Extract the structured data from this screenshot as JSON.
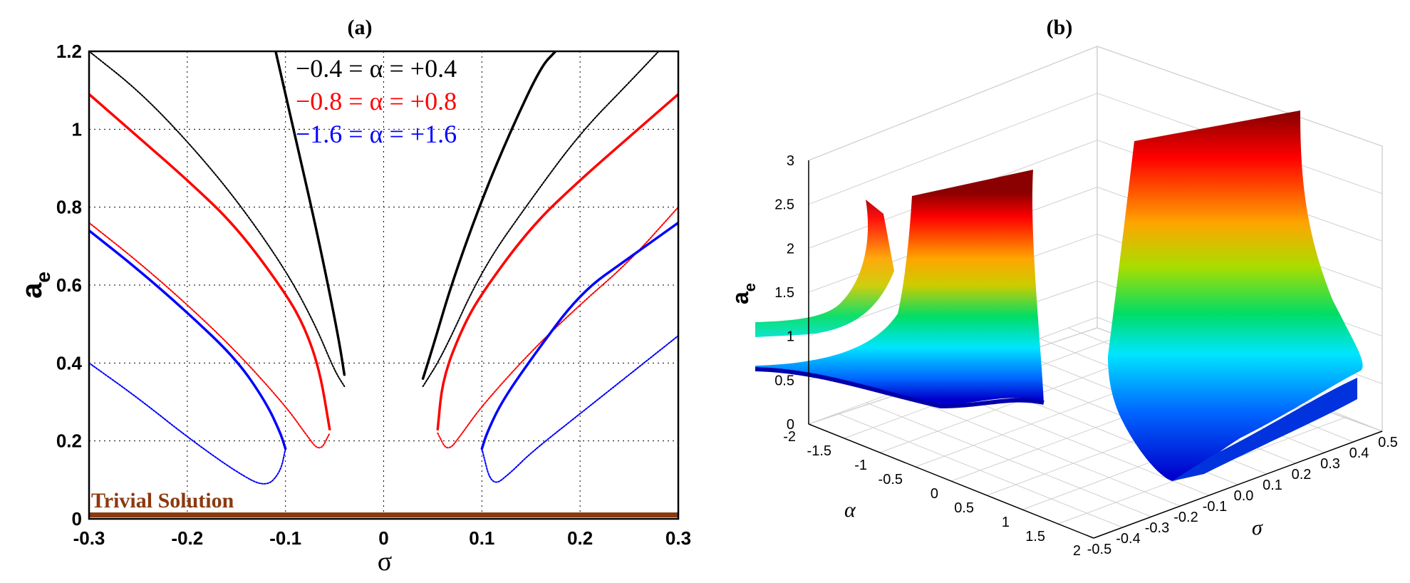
{
  "panel_a": {
    "label": "(a)",
    "xlabel": "σ",
    "ylabel": "a",
    "ylabel_sub": "e",
    "xticks": [
      "-0.3",
      "-0.2",
      "-0.1",
      "0",
      "0.1",
      "0.2",
      "0.3"
    ],
    "yticks": [
      "0",
      "0.2",
      "0.4",
      "0.6",
      "0.8",
      "1",
      "1.2"
    ],
    "legend": [
      {
        "text": "−0.4 = α = +0.4",
        "color": "#000000"
      },
      {
        "text": "−0.8 = α = +0.8",
        "color": "#ff0000"
      },
      {
        "text": "−1.6 = α = +1.6",
        "color": "#0000ff"
      }
    ],
    "annotation": "Trivial Solution",
    "annotation_color": "#8b3a10"
  },
  "panel_b": {
    "label": "(b)",
    "zlabel": "a",
    "zlabel_sub": "e",
    "xlabel": "α",
    "ylabel": "σ",
    "zticks": [
      "0",
      "0.5",
      "1",
      "1.5",
      "2",
      "2.5",
      "3"
    ],
    "alpha_ticks": [
      "-2",
      "-1.5",
      "-1",
      "-0.5",
      "0",
      "0.5",
      "1",
      "1.5",
      "2"
    ],
    "sigma_ticks": [
      "-0.5",
      "-0.4",
      "-0.3",
      "-0.2",
      "-0.1",
      "0.0",
      "0.1",
      "0.2",
      "0.3",
      "0.4",
      "0.5"
    ]
  },
  "chart_data": [
    {
      "type": "line",
      "title": "(a)",
      "xlabel": "σ",
      "ylabel": "a_e",
      "xlim": [
        -0.3,
        0.3
      ],
      "ylim": [
        0,
        1.2
      ],
      "grid": true,
      "legend_position": "top-center",
      "series": [
        {
          "name": "−0.4 = α = +0.4",
          "color": "#000000",
          "branch": "left-upper",
          "stable": true,
          "x": [
            -0.11,
            -0.09,
            -0.07,
            -0.055,
            -0.045,
            -0.04
          ],
          "y": [
            1.2,
            0.98,
            0.76,
            0.58,
            0.45,
            0.37
          ]
        },
        {
          "name": "−0.4 = α = +0.4",
          "color": "#000000",
          "branch": "left-lower",
          "stable": false,
          "x": [
            -0.3,
            -0.25,
            -0.2,
            -0.15,
            -0.1,
            -0.07,
            -0.05,
            -0.04
          ],
          "y": [
            1.2,
            1.1,
            0.97,
            0.82,
            0.64,
            0.5,
            0.38,
            0.34
          ]
        },
        {
          "name": "−0.4 = α = +0.4",
          "color": "#000000",
          "branch": "right-upper",
          "stable": true,
          "x": [
            0.04,
            0.05,
            0.07,
            0.1,
            0.13,
            0.16,
            0.175
          ],
          "y": [
            0.36,
            0.44,
            0.61,
            0.82,
            1.0,
            1.16,
            1.2
          ]
        },
        {
          "name": "−0.4 = α = +0.4",
          "color": "#000000",
          "branch": "right-lower",
          "stable": false,
          "x": [
            0.04,
            0.06,
            0.1,
            0.15,
            0.2,
            0.25,
            0.28
          ],
          "y": [
            0.34,
            0.42,
            0.64,
            0.82,
            0.99,
            1.12,
            1.2
          ]
        },
        {
          "name": "−0.8 = α = +0.8",
          "color": "#ff0000",
          "branch": "left-upper",
          "stable": true,
          "x": [
            -0.3,
            -0.25,
            -0.2,
            -0.15,
            -0.1,
            -0.08,
            -0.065,
            -0.055
          ],
          "y": [
            1.09,
            0.98,
            0.87,
            0.75,
            0.58,
            0.49,
            0.38,
            0.23
          ]
        },
        {
          "name": "−0.8 = α = +0.8",
          "color": "#ff0000",
          "branch": "left-lower",
          "stable": false,
          "x": [
            -0.3,
            -0.25,
            -0.2,
            -0.15,
            -0.1,
            -0.08,
            -0.065,
            -0.055
          ],
          "y": [
            0.76,
            0.66,
            0.55,
            0.43,
            0.29,
            0.22,
            0.17,
            0.22
          ]
        },
        {
          "name": "−0.8 = α = +0.8",
          "color": "#ff0000",
          "branch": "right-upper",
          "stable": true,
          "x": [
            0.055,
            0.06,
            0.08,
            0.1,
            0.15,
            0.2,
            0.25,
            0.3
          ],
          "y": [
            0.23,
            0.36,
            0.49,
            0.58,
            0.75,
            0.87,
            0.98,
            1.09
          ]
        },
        {
          "name": "−0.8 = α = +0.8",
          "color": "#ff0000",
          "branch": "right-lower",
          "stable": false,
          "x": [
            0.055,
            0.065,
            0.08,
            0.1,
            0.15,
            0.2,
            0.25,
            0.3
          ],
          "y": [
            0.22,
            0.17,
            0.22,
            0.29,
            0.43,
            0.55,
            0.66,
            0.8
          ]
        },
        {
          "name": "−1.6 = α = +1.6",
          "color": "#0000ff",
          "branch": "left-upper",
          "stable": true,
          "x": [
            -0.3,
            -0.25,
            -0.2,
            -0.15,
            -0.12,
            -0.105,
            -0.1
          ],
          "y": [
            0.74,
            0.64,
            0.53,
            0.41,
            0.3,
            0.22,
            0.18
          ]
        },
        {
          "name": "−1.6 = α = +1.6",
          "color": "#0000ff",
          "branch": "left-lower",
          "stable": false,
          "x": [
            -0.3,
            -0.25,
            -0.2,
            -0.15,
            -0.12,
            -0.105,
            -0.1
          ],
          "y": [
            0.4,
            0.31,
            0.21,
            0.12,
            0.08,
            0.12,
            0.18
          ]
        },
        {
          "name": "−1.6 = α = +1.6",
          "color": "#0000ff",
          "branch": "right-upper",
          "stable": true,
          "x": [
            0.1,
            0.105,
            0.12,
            0.15,
            0.2,
            0.25,
            0.3
          ],
          "y": [
            0.18,
            0.22,
            0.3,
            0.41,
            0.58,
            0.67,
            0.76
          ]
        },
        {
          "name": "−1.6 = α = +1.6",
          "color": "#0000ff",
          "branch": "right-lower",
          "stable": false,
          "x": [
            0.1,
            0.11,
            0.13,
            0.15,
            0.2,
            0.25,
            0.3
          ],
          "y": [
            0.18,
            0.08,
            0.12,
            0.17,
            0.27,
            0.37,
            0.47
          ]
        },
        {
          "name": "Trivial Solution",
          "color": "#8b3a10",
          "branch": "trivial",
          "stable": true,
          "x": [
            -0.3,
            0.3
          ],
          "y": [
            0.01,
            0.01
          ]
        }
      ]
    },
    {
      "type": "surface",
      "title": "(b)",
      "xlabel": "α",
      "ylabel": "σ",
      "zlabel": "a_e",
      "xlim": [
        -2,
        2
      ],
      "ylim": [
        -0.5,
        0.5
      ],
      "zlim": [
        0,
        3
      ],
      "colormap": "jet",
      "grid": true
    }
  ]
}
